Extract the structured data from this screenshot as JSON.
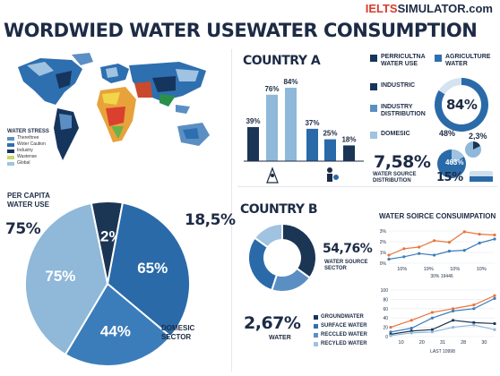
{
  "brand": {
    "prefix": "IELTS",
    "suffix": "SIMULATOR.com"
  },
  "left": {
    "title": "WORDWIED WATER USE",
    "legend_title": "WATER STRESS",
    "legend": [
      {
        "label": "Therethree",
        "color": "#5b8fc4"
      },
      {
        "label": "Woter Caution",
        "color": "#2e6fb0"
      },
      {
        "label": "Industry",
        "color": "#16355c"
      },
      {
        "label": "Wastense",
        "color": "#c8d86b"
      },
      {
        "label": "Global",
        "color": "#9fc3e0"
      }
    ]
  },
  "right": {
    "title": "WATER CONSUMPTION",
    "country_a": "COUNTRY A",
    "country_b": "COUNTRY B",
    "legend_a": [
      {
        "label": "PERRICULTNA WATER USE",
        "color": "#16355c"
      },
      {
        "label": "AGRICULTURE WATER",
        "color": "#2e6fb0"
      },
      {
        "label": "INDUSTRIC",
        "color": "#16355c"
      },
      {
        "label": "INDUSTRY DISTRIBUTION",
        "color": "#5b8fc4"
      },
      {
        "label": "DOMESIC",
        "color": "#9fc3e0"
      }
    ],
    "big_pct": "84%",
    "stat_a_value": "7,58%",
    "stat_a_label": "WATER SOURCE DISTRIBUTION",
    "mini_labels": [
      "48%",
      "2,3%",
      "463%",
      "15%"
    ],
    "donut_b_value": "54,76%",
    "donut_b_label": "WATER SOURCE SECTOR",
    "stat_b_value": "2,67%",
    "stat_b_label": "WATER",
    "legend_b": [
      {
        "label": "GROUNDWATER",
        "color": "#16355c"
      },
      {
        "label": "SURFACE WATER",
        "color": "#2e6fb0"
      },
      {
        "label": "RECCLED WATER",
        "color": "#5b8fc4"
      },
      {
        "label": "RECYLED WATER",
        "color": "#9fc3e0"
      }
    ],
    "line_title": "WATER SOIRCE CONSUIMPATION"
  },
  "chart_data": [
    {
      "type": "pie",
      "labels": [
        "PER CAPITA WATER USE",
        "DOMESIC SECTOR"
      ],
      "slices": [
        {
          "value": 12,
          "label": "12%",
          "color": "#1b3554"
        },
        {
          "value": 65,
          "label": "65%",
          "color": "#2a6aa8"
        },
        {
          "value": 44,
          "label": "44%",
          "color": "#3b7dba"
        },
        {
          "value": 75,
          "label": "75%",
          "color": "#8fb8d9"
        }
      ],
      "outside_labels": [
        "75%",
        "18,5%"
      ]
    },
    {
      "type": "bar",
      "values": [
        39,
        76,
        84,
        37,
        25,
        18
      ],
      "labels": [
        "39%",
        "76%",
        "84%",
        "37%",
        "25%",
        "18%"
      ],
      "colors": [
        "#1b3554",
        "#8fb8d9",
        "#8fb8d9",
        "#2a6aa8",
        "#2a6aa8",
        "#1b3554"
      ]
    },
    {
      "type": "line",
      "xlabel": "30% 19446",
      "x_ticks": [
        "10%",
        "19%",
        "10%",
        "10%"
      ],
      "y_ticks": [
        "3%",
        "2%",
        "1%",
        "0%"
      ],
      "ylim": [
        0,
        4
      ],
      "series": [
        {
          "color": "#e8743b",
          "values": [
            1.0,
            1.8,
            2.0,
            2.8,
            2.6,
            3.9,
            3.6,
            3.5
          ]
        },
        {
          "color": "#3b7dba",
          "values": [
            0.5,
            0.8,
            1.2,
            1.0,
            1.5,
            1.6,
            2.5,
            3.0
          ]
        }
      ]
    },
    {
      "type": "line",
      "xlabel": "LAST 10998",
      "x_ticks": [
        "10",
        "20",
        "31",
        "28",
        "30"
      ],
      "y_ticks": [
        "100",
        "80",
        "60",
        "40",
        "20",
        "0"
      ],
      "ylim": [
        0,
        100
      ],
      "series": [
        {
          "color": "#e8743b",
          "values": [
            20,
            35,
            52,
            60,
            68,
            88
          ]
        },
        {
          "color": "#3b7dba",
          "values": [
            10,
            18,
            40,
            55,
            60,
            82
          ]
        },
        {
          "color": "#1b3554",
          "values": [
            5,
            12,
            15,
            35,
            30,
            28
          ]
        },
        {
          "color": "#8fb8d9",
          "values": [
            2,
            8,
            10,
            20,
            25,
            15
          ]
        }
      ]
    },
    {
      "type": "pie",
      "labels": [
        "84%"
      ],
      "slices": [
        {
          "value": 84,
          "color": "#2a6aa8"
        },
        {
          "value": 16,
          "color": "#d5e3f0"
        }
      ]
    },
    {
      "type": "pie",
      "labels": [
        "54,76%"
      ],
      "slices": [
        {
          "value": 35,
          "color": "#1b3554"
        },
        {
          "value": 20,
          "color": "#5b8fc4"
        },
        {
          "value": 30,
          "color": "#2a6aa8"
        },
        {
          "value": 15,
          "color": "#9fc3e0"
        }
      ]
    }
  ]
}
